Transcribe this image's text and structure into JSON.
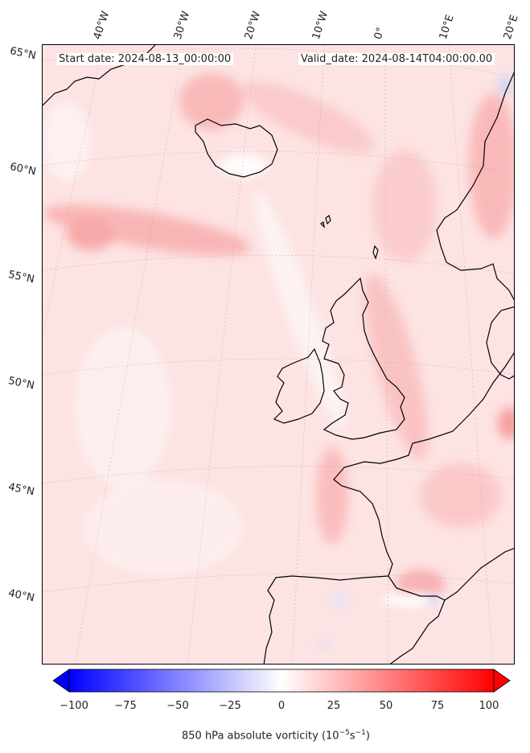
{
  "map": {
    "start_label": "Start date: 2024-08-13_00:00:00",
    "valid_label": "Valid_date: 2024-08-14T04:00:00.00",
    "lon_labels": [
      "40°W",
      "30°W",
      "20°W",
      "10°W",
      "0°",
      "10°E",
      "20°E"
    ],
    "lat_labels": [
      "65°N",
      "60°N",
      "55°N",
      "50°N",
      "45°N",
      "40°N"
    ]
  },
  "colorbar": {
    "ticks": [
      "−100",
      "−75",
      "−50",
      "−25",
      "0",
      "25",
      "50",
      "75",
      "100"
    ],
    "label": "850 hPa absolute vorticity (10",
    "label_exp": "−5",
    "label_unit": "s",
    "label_exp2": "−1",
    "label_end": ")",
    "min": -100,
    "max": 100,
    "colors": {
      "negative": "#0000ff",
      "zero": "#ffffff",
      "positive": "#ff0000"
    }
  }
}
